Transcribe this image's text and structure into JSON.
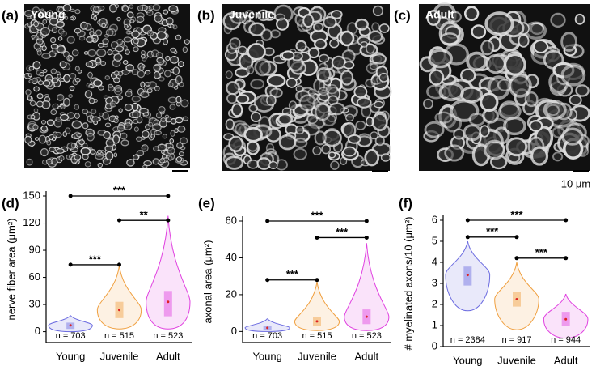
{
  "images": [
    {
      "label": "(a)",
      "title": "Young"
    },
    {
      "label": "(b)",
      "title": "Juvenile"
    },
    {
      "label": "(c)",
      "title": "Adult"
    }
  ],
  "scale_bar_label": "10 μm",
  "chart_data": [
    {
      "type": "violin",
      "panel_label": "(d)",
      "ylabel": "nerve fiber area (μm²)",
      "categories": [
        "Young",
        "Juvenile",
        "Adult"
      ],
      "n_labels": [
        "n = 703",
        "n = 515",
        "n = 523"
      ],
      "colors": [
        "#6a6ae0",
        "#f0a040",
        "#e040e0"
      ],
      "min": [
        0,
        3,
        3
      ],
      "q1": [
        3,
        15,
        17
      ],
      "mean": [
        7,
        24,
        33
      ],
      "q3": [
        10,
        33,
        45
      ],
      "max": [
        18,
        73,
        128
      ],
      "ylim": [
        -12,
        150
      ],
      "yticks": [
        0,
        30,
        60,
        90,
        120,
        150
      ],
      "comparisons": [
        {
          "from": 0,
          "to": 2,
          "y": 150,
          "label": "***"
        },
        {
          "from": 1,
          "to": 2,
          "y": 123,
          "label": "**"
        },
        {
          "from": 0,
          "to": 1,
          "y": 74,
          "label": "***"
        }
      ]
    },
    {
      "type": "violin",
      "panel_label": "(e)",
      "ylabel": "axonal area (μm²)",
      "categories": [
        "Young",
        "Juvenile",
        "Adult"
      ],
      "n_labels": [
        "n = 703",
        "n = 515",
        "n = 523"
      ],
      "colors": [
        "#6a6ae0",
        "#f0a040",
        "#e040e0"
      ],
      "min": [
        0,
        0.5,
        0.5
      ],
      "q1": [
        1,
        3,
        4
      ],
      "mean": [
        2,
        5.5,
        8
      ],
      "q3": [
        3,
        8,
        12
      ],
      "max": [
        7,
        27,
        48
      ],
      "ylim": [
        -6,
        60
      ],
      "yticks": [
        0,
        20,
        40,
        60
      ],
      "comparisons": [
        {
          "from": 0,
          "to": 2,
          "y": 60,
          "label": "***"
        },
        {
          "from": 1,
          "to": 2,
          "y": 51,
          "label": "***"
        },
        {
          "from": 0,
          "to": 1,
          "y": 28,
          "label": "***"
        }
      ]
    },
    {
      "type": "violin",
      "panel_label": "(f)",
      "ylabel": "# myelinated axons/10 (μm²)",
      "categories": [
        "Young",
        "Juvenile",
        "Adult"
      ],
      "n_labels": [
        "n = 2384",
        "n = 917",
        "n = 944"
      ],
      "colors": [
        "#6a6ae0",
        "#f0a040",
        "#e040e0"
      ],
      "min": [
        1.7,
        0.8,
        0.4
      ],
      "q1": [
        2.9,
        1.9,
        1.0
      ],
      "mean": [
        3.4,
        2.25,
        1.3
      ],
      "q3": [
        3.8,
        2.6,
        1.65
      ],
      "max": [
        5.0,
        4.0,
        2.5
      ],
      "ylim": [
        0,
        6
      ],
      "yticks": [
        0,
        1,
        2,
        3,
        4,
        5,
        6
      ],
      "comparisons": [
        {
          "from": 0,
          "to": 2,
          "y": 6,
          "label": "***"
        },
        {
          "from": 0,
          "to": 1,
          "y": 5.2,
          "label": "***"
        },
        {
          "from": 1,
          "to": 2,
          "y": 4.2,
          "label": "***"
        }
      ]
    }
  ]
}
